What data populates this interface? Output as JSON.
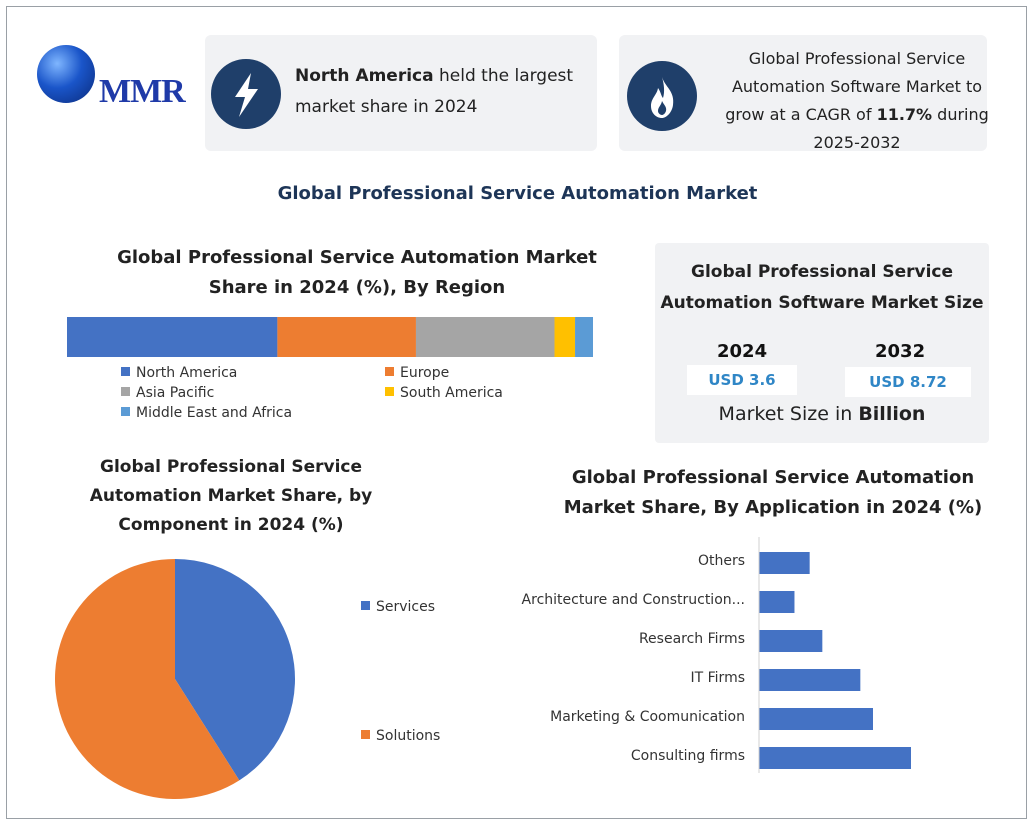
{
  "brand": {
    "logo_text": "MMR"
  },
  "highlights": [
    {
      "icon": "lightning-icon",
      "text_bold": "North America",
      "text_rest_1": " held the largest",
      "text_rest_2": "market share in 2024"
    },
    {
      "icon": "flame-icon",
      "line1": "Global Professional Service",
      "line2": "Automation Software Market to",
      "line3_pre": "grow at a CAGR of ",
      "line3_bold": "11.7%",
      "line3_post": " during",
      "line4": "2025-2032"
    }
  ],
  "main_title": "Global Professional Service Automation Market",
  "market_size": {
    "title_1": "Global Professional Service",
    "title_2": "Automation Software Market Size",
    "year_a": "2024",
    "value_a": "USD 3.6",
    "year_b": "2032",
    "value_b": "USD 8.72",
    "footer_pre": "Market Size in ",
    "footer_bold": "Billion"
  },
  "chart_data": [
    {
      "type": "bar",
      "orientation": "horizontal-stacked",
      "title_1": "Global Professional Service Automation Market",
      "title_2": "Share in 2024 (%), By Region",
      "series": [
        {
          "name": "North America",
          "value": 41,
          "color": "#4472C4"
        },
        {
          "name": "Europe",
          "value": 27,
          "color": "#ED7D31"
        },
        {
          "name": "Asia Pacific",
          "value": 27,
          "color": "#A5A5A5"
        },
        {
          "name": "South America",
          "value": 4,
          "color": "#FFC000"
        },
        {
          "name": "Middle East and Africa",
          "value": 3.5,
          "color": "#5B9BD5"
        }
      ]
    },
    {
      "type": "pie",
      "title_1": "Global Professional Service",
      "title_2": "Automation Market Share, by",
      "title_3": "Component in 2024 (%)",
      "slices": [
        {
          "name": "Services",
          "value": 41,
          "color": "#4472C4"
        },
        {
          "name": "Solutions",
          "value": 59,
          "color": "#ED7D31"
        }
      ]
    },
    {
      "type": "bar",
      "orientation": "horizontal",
      "title_1": "Global Professional Service Automation",
      "title_2": "Market Share, By Application in 2024 (%)",
      "color": "#4472C4",
      "categories": [
        "Others",
        "Architecture and Construction...",
        "Research Firms",
        "IT Firms",
        "Marketing & Coomunication",
        "Consulting firms"
      ],
      "values": [
        10,
        7,
        12.5,
        20,
        22.5,
        30
      ]
    }
  ]
}
